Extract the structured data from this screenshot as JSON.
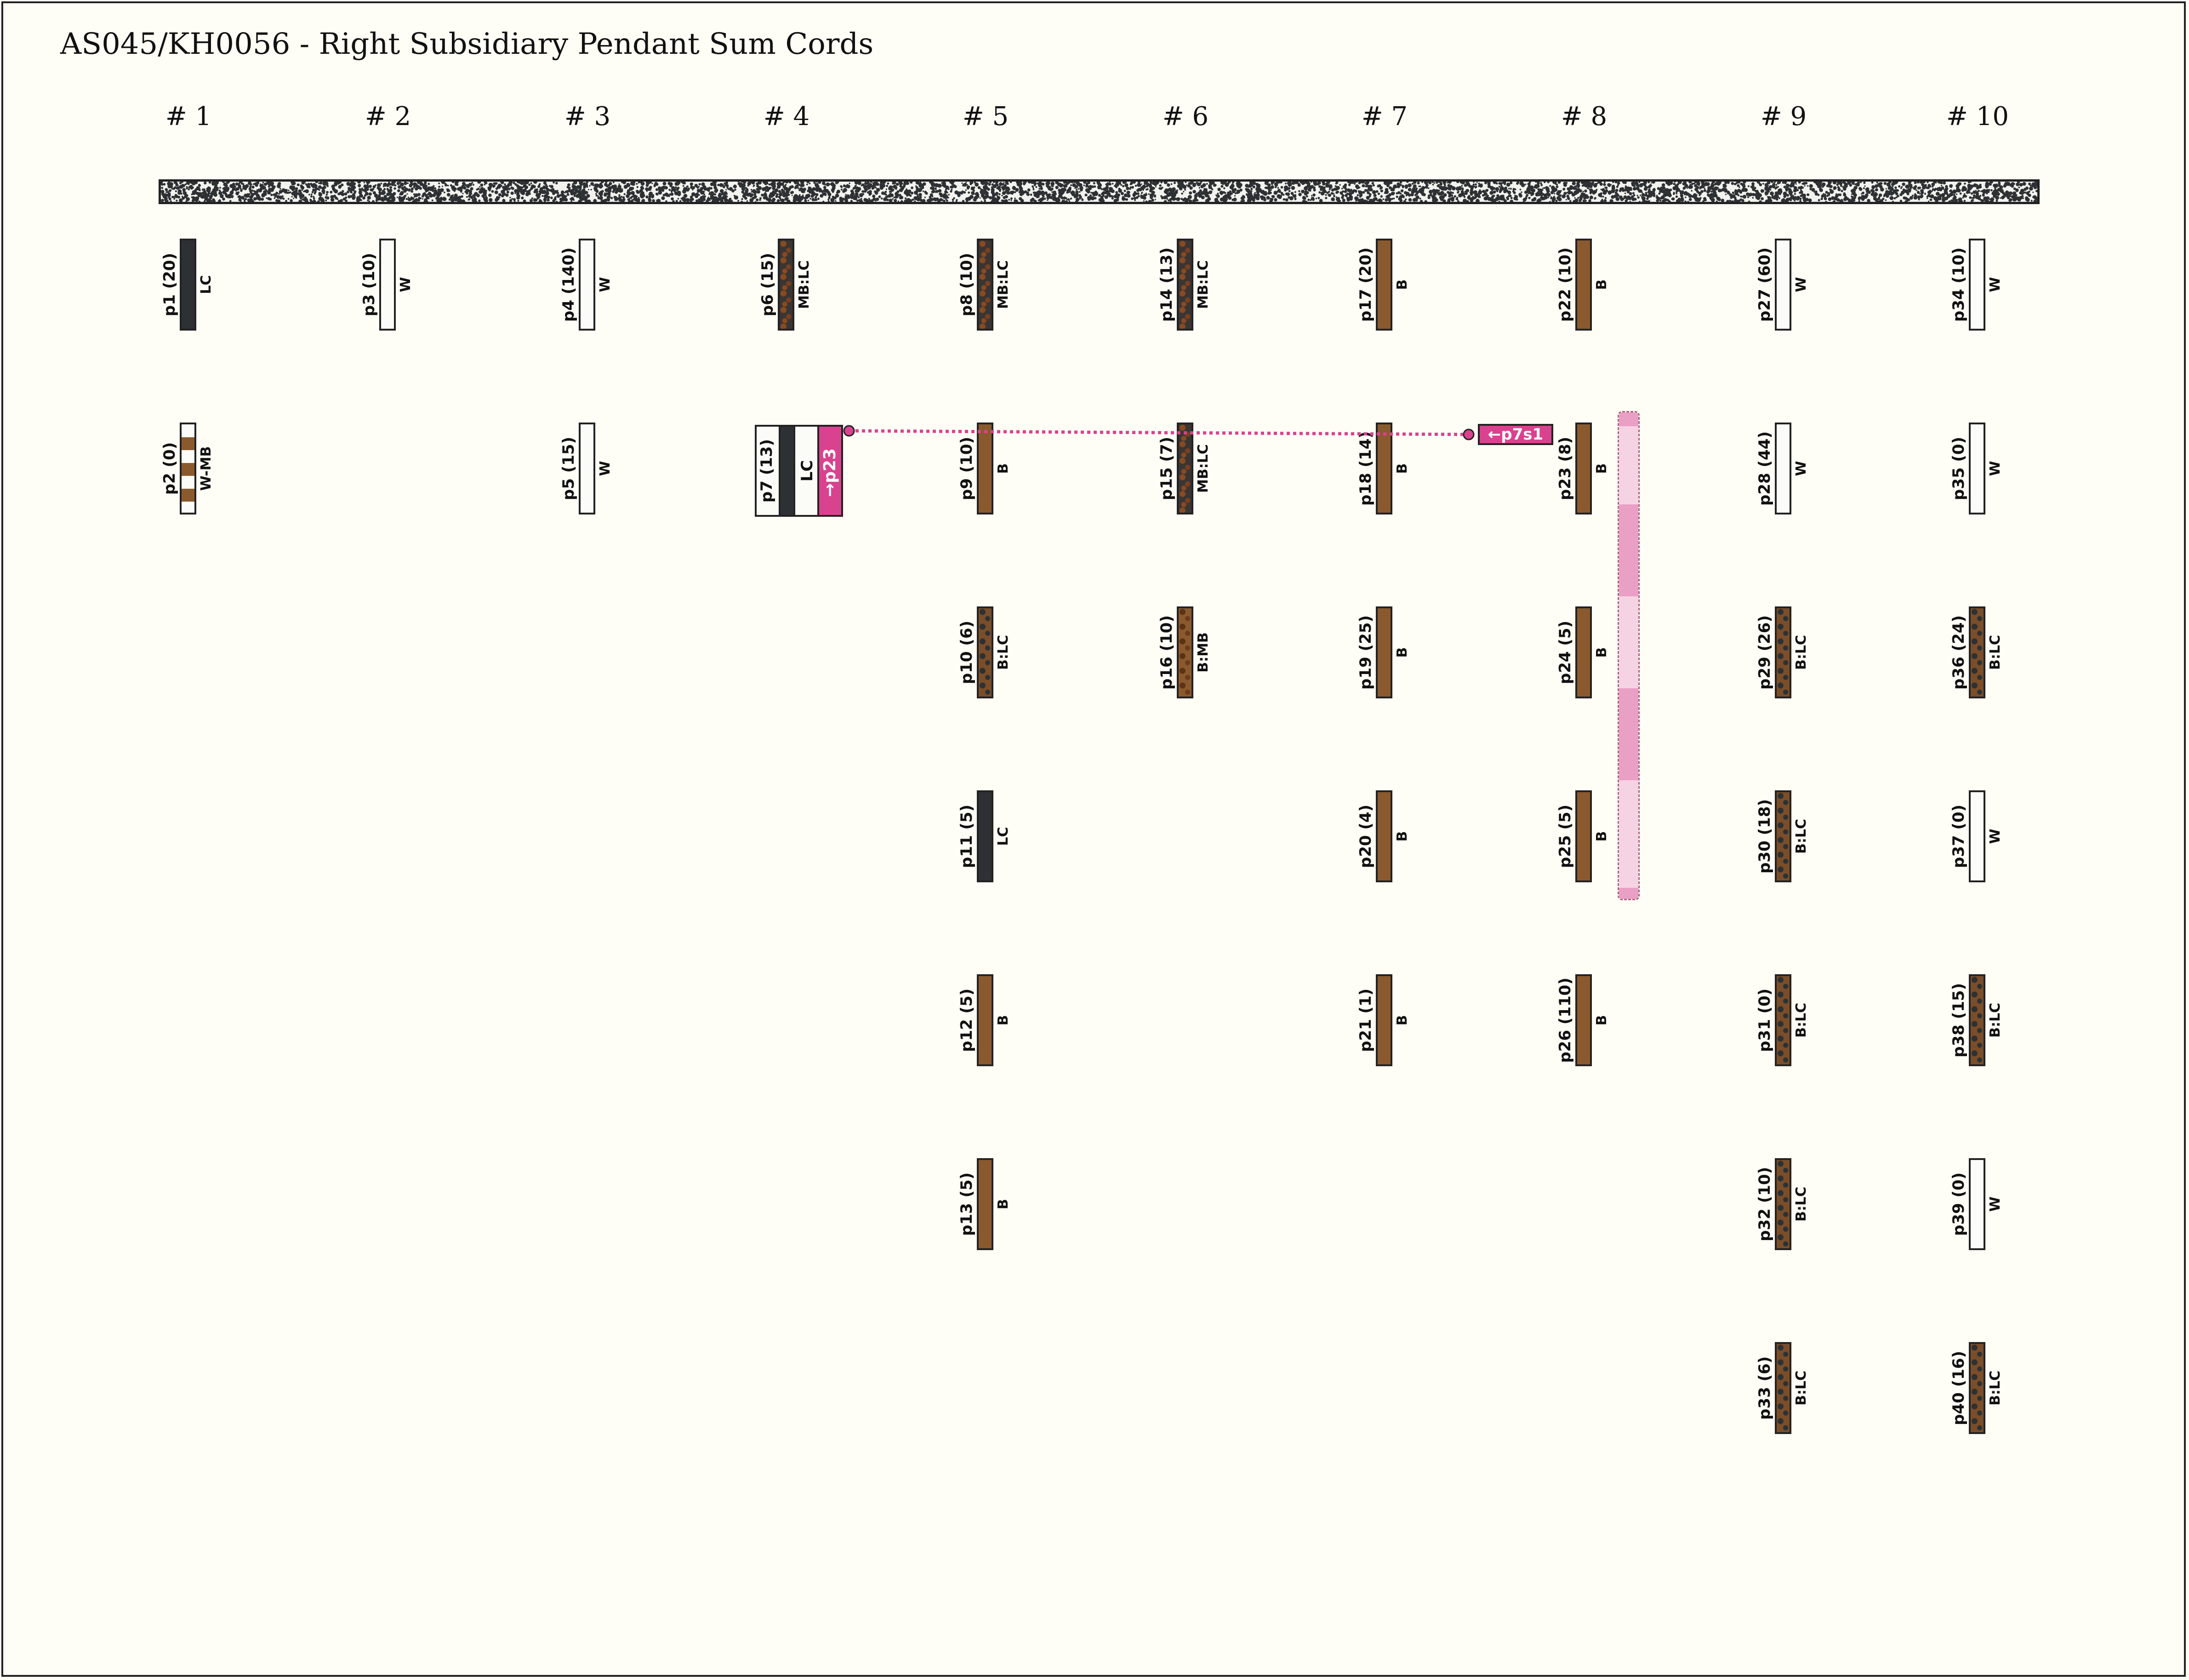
{
  "title": "AS045/KH0056 - Right Subsidiary Pendant Sum Cords",
  "groups": [
    "# 1",
    "# 2",
    "# 3",
    "# 4",
    "# 5",
    "# 6",
    "# 7",
    "# 8",
    "# 9",
    "# 10"
  ],
  "colors": {
    "LC": "#2d3133",
    "W": "#fbfbf7",
    "B": "#8a5a2e",
    "link": "#d9428f"
  },
  "pendants": [
    {
      "id": "p1 (20)",
      "color": "LC",
      "group": 1,
      "row": 1
    },
    {
      "id": "p2 (0)",
      "color": "W-MB",
      "group": 1,
      "row": 2
    },
    {
      "id": "p3 (10)",
      "color": "W",
      "group": 2,
      "row": 1
    },
    {
      "id": "p4 (140)",
      "color": "W",
      "group": 3,
      "row": 1
    },
    {
      "id": "p5 (15)",
      "color": "W",
      "group": 3,
      "row": 2
    },
    {
      "id": "p6 (15)",
      "color": "MB:LC",
      "group": 4,
      "row": 1
    },
    {
      "id": "p8 (10)",
      "color": "MB:LC",
      "group": 5,
      "row": 1
    },
    {
      "id": "p9 (10)",
      "color": "B",
      "group": 5,
      "row": 2
    },
    {
      "id": "p10 (6)",
      "color": "B:LC",
      "group": 5,
      "row": 3
    },
    {
      "id": "p11 (5)",
      "color": "LC",
      "group": 5,
      "row": 4
    },
    {
      "id": "p12 (5)",
      "color": "B",
      "group": 5,
      "row": 5
    },
    {
      "id": "p13 (5)",
      "color": "B",
      "group": 5,
      "row": 6
    },
    {
      "id": "p14 (13)",
      "color": "MB:LC",
      "group": 6,
      "row": 1
    },
    {
      "id": "p15 (7)",
      "color": "MB:LC",
      "group": 6,
      "row": 2
    },
    {
      "id": "p16 (10)",
      "color": "B:MB",
      "group": 6,
      "row": 3
    },
    {
      "id": "p17 (20)",
      "color": "B",
      "group": 7,
      "row": 1
    },
    {
      "id": "p18 (14)",
      "color": "B",
      "group": 7,
      "row": 2
    },
    {
      "id": "p19 (25)",
      "color": "B",
      "group": 7,
      "row": 3
    },
    {
      "id": "p20 (4)",
      "color": "B",
      "group": 7,
      "row": 4
    },
    {
      "id": "p21 (1)",
      "color": "B",
      "group": 7,
      "row": 5
    },
    {
      "id": "p22 (10)",
      "color": "B",
      "group": 8,
      "row": 1
    },
    {
      "id": "p23 (8)",
      "color": "B",
      "group": 8,
      "row": 2
    },
    {
      "id": "p24 (5)",
      "color": "B",
      "group": 8,
      "row": 3
    },
    {
      "id": "p25 (5)",
      "color": "B",
      "group": 8,
      "row": 4
    },
    {
      "id": "p26 (110)",
      "color": "B",
      "group": 8,
      "row": 5
    },
    {
      "id": "p27 (60)",
      "color": "W",
      "group": 9,
      "row": 1
    },
    {
      "id": "p28 (44)",
      "color": "W",
      "group": 9,
      "row": 2
    },
    {
      "id": "p29 (26)",
      "color": "B:LC",
      "group": 9,
      "row": 3
    },
    {
      "id": "p30 (18)",
      "color": "B:LC",
      "group": 9,
      "row": 4
    },
    {
      "id": "p31 (0)",
      "color": "B:LC",
      "group": 9,
      "row": 5
    },
    {
      "id": "p32 (10)",
      "color": "B:LC",
      "group": 9,
      "row": 6
    },
    {
      "id": "p33 (6)",
      "color": "B:LC",
      "group": 9,
      "row": 7
    },
    {
      "id": "p34 (10)",
      "color": "W",
      "group": 10,
      "row": 1
    },
    {
      "id": "p35 (0)",
      "color": "W",
      "group": 10,
      "row": 2
    },
    {
      "id": "p36 (24)",
      "color": "B:LC",
      "group": 10,
      "row": 3
    },
    {
      "id": "p37 (0)",
      "color": "W",
      "group": 10,
      "row": 4
    },
    {
      "id": "p38 (15)",
      "color": "B:LC",
      "group": 10,
      "row": 5
    },
    {
      "id": "p39 (0)",
      "color": "W",
      "group": 10,
      "row": 6
    },
    {
      "id": "p40 (16)",
      "color": "B:LC",
      "group": 10,
      "row": 7
    }
  ],
  "p7": {
    "id": "p7 (13)",
    "color": "LC",
    "link": "→p23"
  },
  "p7s1_tag": "←p7s1"
}
